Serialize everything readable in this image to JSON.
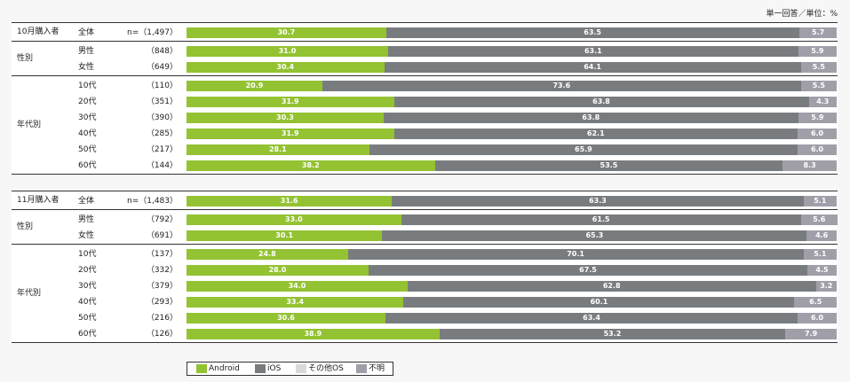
{
  "unit_note": "単一回答／単位：%",
  "colors": {
    "Android": "#93c232",
    "iOS": "#797c7f",
    "その他OS": "#d9d9d9",
    "不明": "#a09fa9"
  },
  "legend": [
    "Android",
    "iOS",
    "その他OS",
    "不明"
  ],
  "chart_data": {
    "type": "bar",
    "orientation": "horizontal",
    "stacked": true,
    "xlim": [
      0,
      100
    ],
    "series_names": [
      "Android",
      "iOS",
      "その他OS",
      "不明"
    ],
    "blocks": [
      {
        "title": "10月購入者",
        "rows": [
          {
            "group": "",
            "label": "全体",
            "n": "n=（1,497）",
            "android": 30.7,
            "ios": 63.5,
            "unknown": 5.7
          },
          {
            "group": "性別",
            "label": "男性",
            "n": "848）",
            "android": 31.0,
            "ios": 63.1,
            "unknown": 5.9
          },
          {
            "group": "性別",
            "label": "女性",
            "n": "649）",
            "android": 30.4,
            "ios": 64.1,
            "unknown": 5.5
          },
          {
            "group": "年代別",
            "label": "10代",
            "n": "110）",
            "android": 20.9,
            "ios": 73.6,
            "unknown": 5.5
          },
          {
            "group": "年代別",
            "label": "20代",
            "n": "351）",
            "android": 31.9,
            "ios": 63.8,
            "unknown": 4.3
          },
          {
            "group": "年代別",
            "label": "30代",
            "n": "390）",
            "android": 30.3,
            "ios": 63.8,
            "unknown": 5.9
          },
          {
            "group": "年代別",
            "label": "40代",
            "n": "285）",
            "android": 31.9,
            "ios": 62.1,
            "unknown": 6.0
          },
          {
            "group": "年代別",
            "label": "50代",
            "n": "217）",
            "android": 28.1,
            "ios": 65.9,
            "unknown": 6.0
          },
          {
            "group": "年代別",
            "label": "60代",
            "n": "144）",
            "android": 38.2,
            "ios": 53.5,
            "unknown": 8.3
          }
        ]
      },
      {
        "title": "11月購入者",
        "rows": [
          {
            "group": "",
            "label": "全体",
            "n": "n=（1,483）",
            "android": 31.6,
            "ios": 63.3,
            "unknown": 5.1
          },
          {
            "group": "性別",
            "label": "男性",
            "n": "792）",
            "android": 33.0,
            "ios": 61.5,
            "unknown": 5.6
          },
          {
            "group": "性別",
            "label": "女性",
            "n": "691）",
            "android": 30.1,
            "ios": 65.3,
            "unknown": 4.6
          },
          {
            "group": "年代別",
            "label": "10代",
            "n": "137）",
            "android": 24.8,
            "ios": 70.1,
            "unknown": 5.1
          },
          {
            "group": "年代別",
            "label": "20代",
            "n": "332）",
            "android": 28.0,
            "ios": 67.5,
            "unknown": 4.5
          },
          {
            "group": "年代別",
            "label": "30代",
            "n": "379）",
            "android": 34.0,
            "ios": 62.8,
            "unknown": 3.2
          },
          {
            "group": "年代別",
            "label": "40代",
            "n": "293）",
            "android": 33.4,
            "ios": 60.1,
            "unknown": 6.5
          },
          {
            "group": "年代別",
            "label": "50代",
            "n": "216）",
            "android": 30.6,
            "ios": 63.4,
            "unknown": 6.0
          },
          {
            "group": "年代別",
            "label": "60代",
            "n": "126）",
            "android": 38.9,
            "ios": 53.2,
            "unknown": 7.9
          }
        ]
      }
    ]
  }
}
